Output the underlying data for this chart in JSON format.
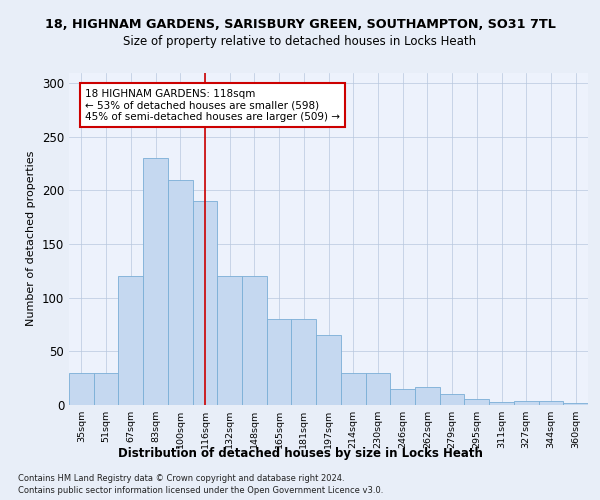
{
  "title1": "18, HIGHNAM GARDENS, SARISBURY GREEN, SOUTHAMPTON, SO31 7TL",
  "title2": "Size of property relative to detached houses in Locks Heath",
  "xlabel": "Distribution of detached houses by size in Locks Heath",
  "ylabel": "Number of detached properties",
  "categories": [
    "35sqm",
    "51sqm",
    "67sqm",
    "83sqm",
    "100sqm",
    "116sqm",
    "132sqm",
    "148sqm",
    "165sqm",
    "181sqm",
    "197sqm",
    "214sqm",
    "230sqm",
    "246sqm",
    "262sqm",
    "279sqm",
    "295sqm",
    "311sqm",
    "327sqm",
    "344sqm",
    "360sqm"
  ],
  "values": [
    30,
    30,
    120,
    230,
    210,
    190,
    120,
    120,
    80,
    80,
    65,
    30,
    30,
    15,
    17,
    10,
    6,
    3,
    4,
    4,
    2
  ],
  "bar_color": "#c5d8f0",
  "bar_edge_color": "#7aaed6",
  "vline_x_index": 5,
  "vline_color": "#cc0000",
  "annotation_text": "18 HIGHNAM GARDENS: 118sqm\n← 53% of detached houses are smaller (598)\n45% of semi-detached houses are larger (509) →",
  "annotation_box_color": "#ffffff",
  "annotation_box_edge": "#cc0000",
  "ylim": [
    0,
    310
  ],
  "yticks": [
    0,
    50,
    100,
    150,
    200,
    250,
    300
  ],
  "footer1": "Contains HM Land Registry data © Crown copyright and database right 2024.",
  "footer2": "Contains public sector information licensed under the Open Government Licence v3.0.",
  "bg_color": "#e8eef8",
  "plot_bg": "#edf2fc"
}
